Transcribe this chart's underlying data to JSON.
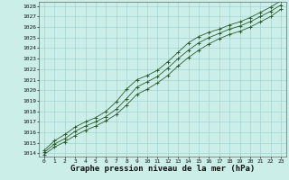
{
  "x": [
    0,
    1,
    2,
    3,
    4,
    5,
    6,
    7,
    8,
    9,
    10,
    11,
    12,
    13,
    14,
    15,
    16,
    17,
    18,
    19,
    20,
    21,
    22,
    23
  ],
  "line_avg": [
    1014.1,
    1014.9,
    1015.4,
    1016.1,
    1016.6,
    1017.0,
    1017.5,
    1018.2,
    1019.2,
    1020.3,
    1020.8,
    1021.3,
    1022.1,
    1023.0,
    1023.8,
    1024.5,
    1025.0,
    1025.4,
    1025.8,
    1026.1,
    1026.5,
    1027.0,
    1027.5,
    1028.1
  ],
  "line_max": [
    1014.3,
    1015.2,
    1015.8,
    1016.5,
    1017.0,
    1017.4,
    1018.0,
    1018.9,
    1020.1,
    1021.0,
    1021.4,
    1021.9,
    1022.7,
    1023.6,
    1024.5,
    1025.1,
    1025.5,
    1025.8,
    1026.2,
    1026.5,
    1026.9,
    1027.4,
    1027.9,
    1028.5
  ],
  "line_min": [
    1013.9,
    1014.6,
    1015.1,
    1015.7,
    1016.2,
    1016.6,
    1017.1,
    1017.7,
    1018.6,
    1019.6,
    1020.1,
    1020.7,
    1021.4,
    1022.3,
    1023.1,
    1023.8,
    1024.4,
    1024.9,
    1025.3,
    1025.6,
    1026.0,
    1026.5,
    1027.0,
    1027.7
  ],
  "ylim": [
    1014,
    1028
  ],
  "xlim": [
    0,
    23
  ],
  "yticks": [
    1014,
    1015,
    1016,
    1017,
    1018,
    1019,
    1020,
    1021,
    1022,
    1023,
    1024,
    1025,
    1026,
    1027,
    1028
  ],
  "xticks": [
    0,
    1,
    2,
    3,
    4,
    5,
    6,
    7,
    8,
    9,
    10,
    11,
    12,
    13,
    14,
    15,
    16,
    17,
    18,
    19,
    20,
    21,
    22,
    23
  ],
  "line_color": "#2d5a2d",
  "bg_color": "#cceee8",
  "grid_color": "#99cccc",
  "xlabel": "Graphe pression niveau de la mer (hPa)",
  "tick_fontsize": 4.5,
  "label_fontsize": 6.5,
  "fig_bg": "#cceee8"
}
